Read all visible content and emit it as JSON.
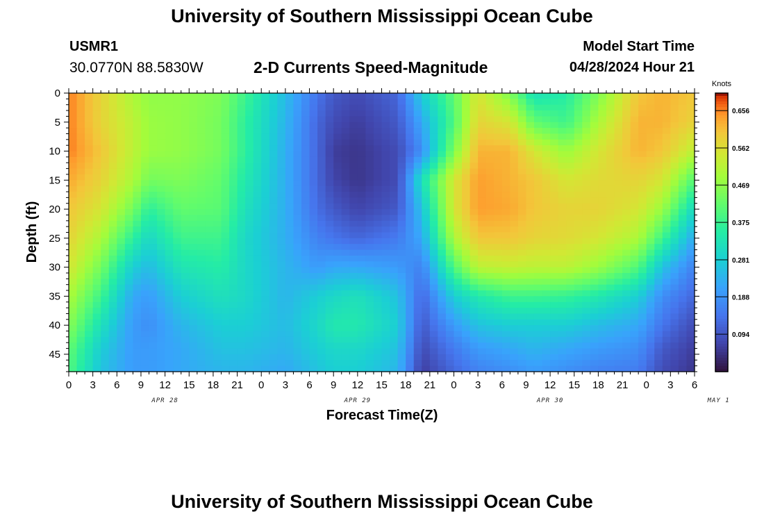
{
  "header": {
    "title": "University of Southern Mississippi Ocean Cube",
    "station_name": "USMR1",
    "station_coords": "30.0770N  88.5830W",
    "subtitle": "2-D Currents Speed-Magnitude",
    "model_start_label": "Model Start Time",
    "model_start_value": "04/28/2024 Hour 21"
  },
  "footer": {
    "title": "University of Southern Mississippi Ocean Cube"
  },
  "chart_data": {
    "type": "heatmap",
    "xlabel": "Forecast Time(Z)",
    "ylabel": "Depth (ft)",
    "x_tick_labels": [
      "0",
      "3",
      "6",
      "9",
      "12",
      "15",
      "18",
      "21",
      "0",
      "3",
      "6",
      "9",
      "12",
      "15",
      "18",
      "21",
      "0",
      "3",
      "6",
      "9",
      "12",
      "15",
      "18",
      "21",
      "0",
      "3",
      "6"
    ],
    "x_range_hours": [
      0,
      78
    ],
    "date_labels": [
      {
        "label": "APR 28",
        "hour": 12
      },
      {
        "label": "APR 29",
        "hour": 36
      },
      {
        "label": "APR 30",
        "hour": 60
      },
      {
        "label": "MAY 1",
        "hour": 81
      }
    ],
    "y_tick_labels": [
      "0",
      "5",
      "10",
      "15",
      "20",
      "25",
      "30",
      "35",
      "40",
      "45"
    ],
    "y_range_ft": [
      0,
      48
    ],
    "colorbar": {
      "unit": "Knots",
      "range": [
        0.0,
        0.7
      ],
      "tick_labels": [
        "0.656",
        "0.562",
        "0.469",
        "0.375",
        "0.281",
        "0.188",
        "0.094"
      ]
    },
    "approx_field_knots": {
      "x_hours": [
        0,
        4,
        8,
        10,
        14,
        19,
        22,
        27,
        31,
        33,
        36,
        41,
        44,
        48,
        51,
        55,
        58,
        62,
        66,
        71,
        74,
        78
      ],
      "y_depth_ft": [
        0,
        5,
        10,
        15,
        20,
        25,
        30,
        35,
        40,
        44,
        48
      ],
      "values": [
        [
          0.66,
          0.58,
          0.5,
          0.47,
          0.47,
          0.45,
          0.38,
          0.25,
          0.14,
          0.1,
          0.08,
          0.12,
          0.28,
          0.42,
          0.55,
          0.45,
          0.32,
          0.35,
          0.45,
          0.6,
          0.62,
          0.6
        ],
        [
          0.66,
          0.58,
          0.52,
          0.48,
          0.47,
          0.44,
          0.36,
          0.24,
          0.12,
          0.08,
          0.06,
          0.1,
          0.22,
          0.4,
          0.58,
          0.55,
          0.42,
          0.38,
          0.5,
          0.62,
          0.62,
          0.58
        ],
        [
          0.66,
          0.6,
          0.52,
          0.48,
          0.47,
          0.44,
          0.36,
          0.23,
          0.12,
          0.06,
          0.05,
          0.08,
          0.18,
          0.45,
          0.62,
          0.62,
          0.55,
          0.48,
          0.55,
          0.62,
          0.6,
          0.52
        ],
        [
          0.63,
          0.58,
          0.5,
          0.44,
          0.45,
          0.42,
          0.34,
          0.23,
          0.12,
          0.07,
          0.05,
          0.08,
          0.32,
          0.55,
          0.64,
          0.62,
          0.6,
          0.55,
          0.57,
          0.58,
          0.55,
          0.4
        ],
        [
          0.6,
          0.55,
          0.44,
          0.36,
          0.42,
          0.41,
          0.32,
          0.23,
          0.13,
          0.1,
          0.07,
          0.1,
          0.26,
          0.55,
          0.64,
          0.63,
          0.6,
          0.58,
          0.58,
          0.55,
          0.48,
          0.3
        ],
        [
          0.58,
          0.5,
          0.36,
          0.3,
          0.38,
          0.38,
          0.3,
          0.23,
          0.16,
          0.14,
          0.12,
          0.15,
          0.22,
          0.5,
          0.6,
          0.6,
          0.58,
          0.57,
          0.55,
          0.5,
          0.38,
          0.22
        ],
        [
          0.55,
          0.44,
          0.28,
          0.25,
          0.33,
          0.35,
          0.3,
          0.24,
          0.2,
          0.22,
          0.22,
          0.2,
          0.16,
          0.4,
          0.52,
          0.53,
          0.52,
          0.52,
          0.48,
          0.4,
          0.26,
          0.16
        ],
        [
          0.5,
          0.38,
          0.22,
          0.2,
          0.28,
          0.32,
          0.3,
          0.24,
          0.28,
          0.3,
          0.32,
          0.26,
          0.12,
          0.28,
          0.34,
          0.38,
          0.38,
          0.37,
          0.34,
          0.28,
          0.18,
          0.12
        ],
        [
          0.46,
          0.32,
          0.2,
          0.18,
          0.24,
          0.28,
          0.28,
          0.25,
          0.3,
          0.34,
          0.34,
          0.28,
          0.1,
          0.2,
          0.26,
          0.28,
          0.28,
          0.28,
          0.25,
          0.22,
          0.14,
          0.08
        ],
        [
          0.42,
          0.28,
          0.2,
          0.2,
          0.22,
          0.26,
          0.26,
          0.24,
          0.28,
          0.3,
          0.3,
          0.26,
          0.08,
          0.15,
          0.2,
          0.22,
          0.24,
          0.22,
          0.2,
          0.18,
          0.1,
          0.06
        ],
        [
          0.4,
          0.26,
          0.2,
          0.2,
          0.22,
          0.24,
          0.24,
          0.22,
          0.26,
          0.28,
          0.28,
          0.24,
          0.06,
          0.12,
          0.16,
          0.18,
          0.2,
          0.18,
          0.16,
          0.15,
          0.08,
          0.05
        ]
      ]
    }
  }
}
